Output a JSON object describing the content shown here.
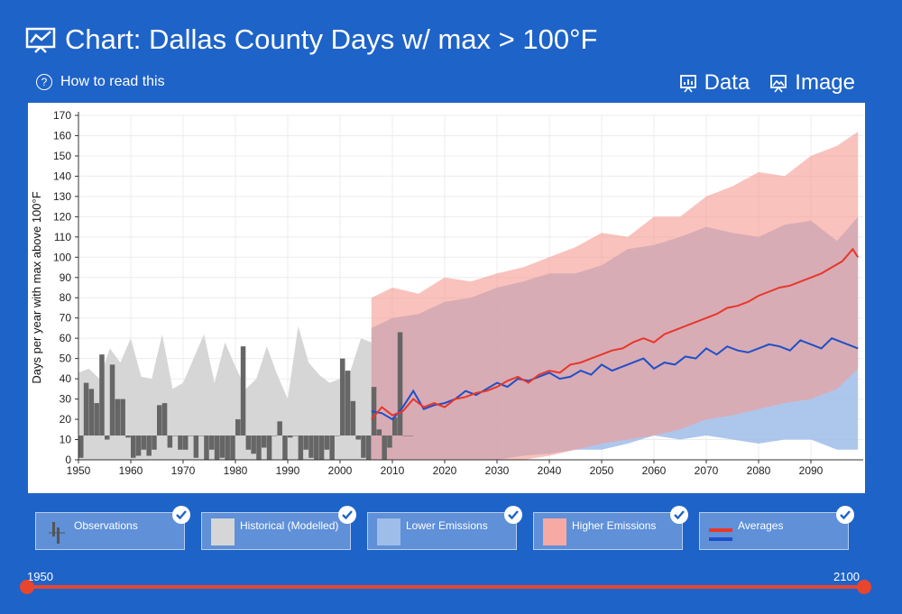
{
  "header": {
    "title": "Chart: Dallas County Days w/ max > 100°F",
    "help_label": "How to read this",
    "data_label": "Data",
    "image_label": "Image"
  },
  "colors": {
    "background": "#1e63c8",
    "observed_bar": "#666666",
    "historical_band": "#d6d6d6",
    "lower_band": "#9fbde9",
    "higher_band": "#f59a91",
    "avg_lower": "#1f4fc8",
    "avg_higher": "#e8372a",
    "slider": "#e8452e"
  },
  "legend": [
    {
      "label": "Observations",
      "icon": "observations-icon"
    },
    {
      "label": "Historical (Modelled)",
      "icon": "historical-swatch"
    },
    {
      "label": "Lower Emissions",
      "icon": "lower-emissions-swatch"
    },
    {
      "label": "Higher Emissions",
      "icon": "higher-emissions-swatch"
    },
    {
      "label": "Averages",
      "icon": "averages-icon"
    }
  ],
  "slider": {
    "min_label": "1950",
    "max_label": "2100"
  },
  "chart_data": {
    "type": "area",
    "ylabel": "Days per year with max above 100°F",
    "xlim": [
      1950,
      2100
    ],
    "ylim": [
      0,
      170
    ],
    "x_ticks": [
      1950,
      1960,
      1970,
      1980,
      1990,
      2000,
      2010,
      2020,
      2030,
      2040,
      2050,
      2060,
      2070,
      2080,
      2090
    ],
    "y_ticks": [
      0,
      10,
      20,
      30,
      40,
      50,
      60,
      70,
      80,
      90,
      100,
      110,
      120,
      130,
      140,
      150,
      160,
      170
    ],
    "grid": true,
    "observations_baseline": 12,
    "observations": {
      "years": [
        1950,
        1951,
        1952,
        1953,
        1954,
        1955,
        1956,
        1957,
        1958,
        1959,
        1960,
        1961,
        1962,
        1963,
        1964,
        1965,
        1966,
        1967,
        1968,
        1969,
        1970,
        1971,
        1972,
        1973,
        1974,
        1975,
        1976,
        1977,
        1978,
        1979,
        1980,
        1981,
        1982,
        1983,
        1984,
        1985,
        1986,
        1987,
        1988,
        1989,
        1990,
        1991,
        1992,
        1993,
        1994,
        1995,
        1996,
        1997,
        1998,
        1999,
        2000,
        2001,
        2002,
        2003,
        2004,
        2005,
        2006,
        2007,
        2008,
        2009,
        2010,
        2011,
        2012,
        2013
      ],
      "values": [
        1,
        38,
        35,
        28,
        52,
        10,
        47,
        30,
        30,
        11,
        1,
        2,
        5,
        2,
        5,
        27,
        28,
        6,
        12,
        5,
        5,
        12,
        1,
        12,
        0,
        5,
        0,
        1,
        0,
        0,
        20,
        56,
        5,
        3,
        0,
        6,
        0,
        12,
        19,
        0,
        11,
        12,
        0,
        5,
        1,
        0,
        0,
        5,
        0,
        12,
        50,
        44,
        29,
        10,
        1,
        0,
        36,
        15,
        0,
        6,
        21,
        63,
        12,
        12
      ]
    },
    "historical_band": {
      "years": [
        1950,
        1952,
        1954,
        1956,
        1958,
        1960,
        1962,
        1964,
        1966,
        1968,
        1970,
        1972,
        1974,
        1976,
        1978,
        1980,
        1982,
        1984,
        1986,
        1988,
        1990,
        1992,
        1994,
        1996,
        1998,
        2000,
        2002,
        2004,
        2006
      ],
      "upper": [
        43,
        45,
        40,
        55,
        48,
        60,
        41,
        40,
        62,
        35,
        38,
        50,
        62,
        38,
        58,
        46,
        35,
        40,
        56,
        42,
        30,
        66,
        48,
        42,
        38,
        40,
        44,
        60,
        58
      ],
      "lower": [
        0,
        0,
        0,
        0,
        0,
        0,
        0,
        0,
        0,
        0,
        0,
        0,
        0,
        0,
        0,
        0,
        0,
        0,
        0,
        0,
        0,
        0,
        0,
        0,
        0,
        0,
        0,
        0,
        0
      ]
    },
    "lower_emissions_band": {
      "years": [
        2006,
        2010,
        2015,
        2020,
        2025,
        2030,
        2035,
        2040,
        2045,
        2050,
        2055,
        2060,
        2065,
        2070,
        2075,
        2080,
        2085,
        2090,
        2095,
        2099
      ],
      "upper": [
        65,
        70,
        72,
        78,
        80,
        85,
        88,
        92,
        92,
        96,
        104,
        106,
        110,
        115,
        112,
        110,
        116,
        118,
        108,
        120
      ],
      "lower": [
        0,
        0,
        0,
        0,
        0,
        0,
        2,
        3,
        5,
        5,
        8,
        12,
        10,
        12,
        10,
        8,
        10,
        10,
        5,
        5
      ]
    },
    "higher_emissions_band": {
      "years": [
        2006,
        2010,
        2015,
        2020,
        2025,
        2030,
        2035,
        2040,
        2045,
        2050,
        2055,
        2060,
        2065,
        2070,
        2075,
        2080,
        2085,
        2090,
        2095,
        2099
      ],
      "upper": [
        80,
        85,
        82,
        90,
        88,
        92,
        95,
        100,
        105,
        112,
        110,
        120,
        120,
        130,
        135,
        142,
        140,
        150,
        155,
        162
      ],
      "lower": [
        0,
        0,
        0,
        0,
        0,
        0,
        0,
        2,
        5,
        8,
        10,
        12,
        15,
        20,
        22,
        25,
        28,
        30,
        35,
        45
      ]
    },
    "series": [
      {
        "name": "",
        "color": "#1f4fc8",
        "x": [
          2006,
          2008,
          2010,
          2012,
          2014,
          2016,
          2018,
          2020,
          2022,
          2024,
          2026,
          2028,
          2030,
          2032,
          2034,
          2036,
          2038,
          2040,
          2042,
          2044,
          2046,
          2048,
          2050,
          2052,
          2054,
          2056,
          2058,
          2060,
          2062,
          2064,
          2066,
          2068,
          2070,
          2072,
          2074,
          2076,
          2078,
          2080,
          2082,
          2084,
          2086,
          2088,
          2090,
          2092,
          2094,
          2096,
          2098,
          2099
        ],
        "y": [
          24,
          23,
          20,
          26,
          34,
          25,
          27,
          28,
          30,
          34,
          32,
          35,
          38,
          36,
          40,
          39,
          41,
          43,
          40,
          41,
          44,
          42,
          47,
          44,
          46,
          48,
          50,
          45,
          48,
          47,
          51,
          50,
          55,
          52,
          56,
          54,
          53,
          55,
          57,
          56,
          54,
          59,
          57,
          55,
          60,
          58,
          56,
          55
        ]
      },
      {
        "name": "",
        "color": "#e8372a",
        "x": [
          2006,
          2008,
          2010,
          2012,
          2014,
          2016,
          2018,
          2020,
          2022,
          2024,
          2026,
          2028,
          2030,
          2032,
          2034,
          2036,
          2038,
          2040,
          2042,
          2044,
          2046,
          2048,
          2050,
          2052,
          2054,
          2056,
          2058,
          2060,
          2062,
          2064,
          2066,
          2068,
          2070,
          2072,
          2074,
          2076,
          2078,
          2080,
          2082,
          2084,
          2086,
          2088,
          2090,
          2092,
          2094,
          2096,
          2098,
          2099
        ],
        "y": [
          20,
          26,
          22,
          24,
          30,
          26,
          28,
          26,
          30,
          31,
          33,
          34,
          36,
          39,
          41,
          38,
          42,
          44,
          43,
          47,
          48,
          50,
          52,
          54,
          55,
          58,
          60,
          58,
          62,
          64,
          66,
          68,
          70,
          72,
          75,
          76,
          78,
          81,
          83,
          85,
          86,
          88,
          90,
          92,
          95,
          98,
          104,
          100
        ]
      }
    ]
  }
}
